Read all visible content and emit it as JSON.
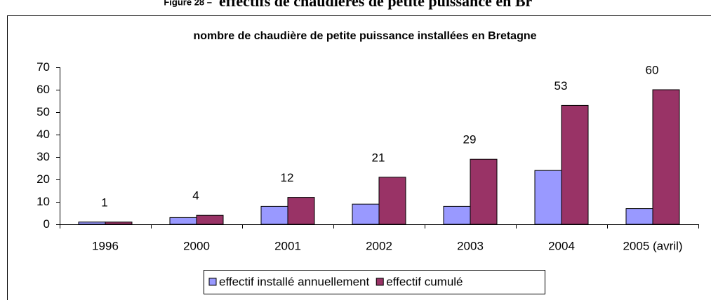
{
  "caption": {
    "label": "Figure 28 –",
    "text": "effectifs de chaudières de petite puissance en Br"
  },
  "chart_data": {
    "type": "bar",
    "title": "nombre de chaudière de petite puissance installées en Bretagne",
    "categories": [
      "1996",
      "2000",
      "2001",
      "2002",
      "2003",
      "2004",
      "2005 (avril)"
    ],
    "series": [
      {
        "name": "effectif installé annuellement",
        "color": "#9999ff",
        "values": [
          1,
          3,
          8,
          9,
          8,
          24,
          7
        ]
      },
      {
        "name": "effectif cumulé",
        "color": "#993366",
        "values": [
          1,
          4,
          12,
          21,
          29,
          53,
          60
        ],
        "data_labels": true
      }
    ],
    "ylim": [
      0,
      70
    ],
    "yticks": [
      0,
      10,
      20,
      30,
      40,
      50,
      60,
      70
    ],
    "grid": false,
    "legend": "bottom"
  }
}
